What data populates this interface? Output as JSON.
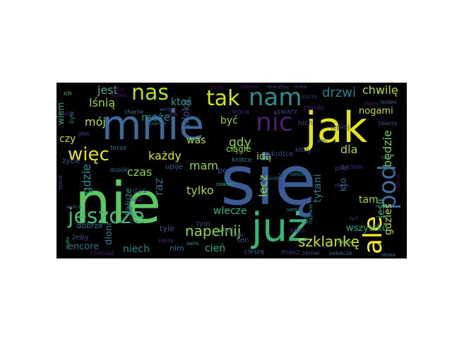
{
  "word_cloud": {
    "background": "#000000",
    "words": [
      {
        "text": "się",
        "color": "#3b5b94"
      },
      {
        "text": "nie",
        "color": "#5cc863"
      },
      {
        "text": "mnie",
        "color": "#3e6a9a"
      },
      {
        "text": "jak",
        "color": "#e2e418"
      },
      {
        "text": "już",
        "color": "#36b677"
      },
      {
        "text": "jeszcze",
        "color": "#46b97a"
      },
      {
        "text": "ale",
        "color": "#fde725"
      },
      {
        "text": "pod",
        "color": "#3f6c9d"
      },
      {
        "text": "tak",
        "color": "#d2e21b"
      },
      {
        "text": "nam",
        "color": "#2d8e8d"
      },
      {
        "text": "nas",
        "color": "#b5de2b"
      },
      {
        "text": "nic",
        "color": "#482172"
      },
      {
        "text": "więc",
        "color": "#e5e419"
      },
      {
        "text": "napełnij",
        "color": "#90d743"
      },
      {
        "text": "szklankę",
        "color": "#cee11d"
      },
      {
        "text": "jest",
        "color": "#4aa889"
      },
      {
        "text": "lśnią",
        "color": "#96d440"
      },
      {
        "text": "może",
        "color": "#24878e"
      },
      {
        "text": "ktoś",
        "color": "#2a9d8a"
      },
      {
        "text": "drzwi",
        "color": "#25828e"
      },
      {
        "text": "chwilę",
        "color": "#b3dd2c"
      },
      {
        "text": "będzie",
        "color": "#6ece58"
      },
      {
        "text": "mój",
        "color": "#bddf26"
      },
      {
        "text": "gdzie",
        "color": "#1f958b"
      },
      {
        "text": "każdy",
        "color": "#d8e219"
      },
      {
        "text": "mam",
        "color": "#90d743"
      },
      {
        "text": "gdy",
        "color": "#8bd646"
      },
      {
        "text": "być",
        "color": "#8ed645"
      },
      {
        "text": "dla",
        "color": "#9fda3a"
      },
      {
        "text": "czy",
        "color": "#bfdf25"
      },
      {
        "text": "wlokę",
        "color": "#3a548c"
      },
      {
        "text": "tylko",
        "color": "#a2da37"
      },
      {
        "text": "czas",
        "color": "#8bd646"
      },
      {
        "text": "raz",
        "color": "#2f6c8e"
      },
      {
        "text": "lecz",
        "color": "#93d741"
      },
      {
        "text": "idą",
        "color": "#8ed645"
      },
      {
        "text": "jeśli",
        "color": "#35b779"
      },
      {
        "text": "tam",
        "color": "#9fda3a"
      },
      {
        "text": "gdzieś",
        "color": "#bddf26"
      },
      {
        "text": "wlecze",
        "color": "#35b779"
      },
      {
        "text": "cień",
        "color": "#2db27d"
      },
      {
        "text": "niech",
        "color": "#238a8d"
      },
      {
        "text": "nogami",
        "color": "#c0df25"
      },
      {
        "text": "tytani",
        "color": "#26818e"
      },
      {
        "text": "dłoni",
        "color": "#2a788e"
      },
      {
        "text": "encore",
        "color": "#2c718e"
      },
      {
        "text": "wszystko",
        "color": "#25ab82"
      },
      {
        "text": "was",
        "color": "#b5de2b"
      },
      {
        "text": "ciągle",
        "color": "#90d743"
      },
      {
        "text": "krótce",
        "color": "#287c8e"
      },
      {
        "text": "nim",
        "color": "#2c728e"
      },
      {
        "text": "kałuże",
        "color": "#20928c"
      },
      {
        "text": "wiem",
        "color": "#2fb47c"
      },
      {
        "text": "dobrze",
        "color": "#31688e"
      },
      {
        "text": "cieszą",
        "color": "#365c8d"
      },
      {
        "text": "tyle",
        "color": "#3b528b"
      },
      {
        "text": "kto",
        "color": "#2e6f8e"
      },
      {
        "text": "tym",
        "color": "#3e4989"
      },
      {
        "text": "ten",
        "color": "#375a8c"
      },
      {
        "text": "boli",
        "color": "#2a778e"
      },
      {
        "text": "życie",
        "color": "#38588c"
      },
      {
        "text": "teraz",
        "color": "#2e6d8e"
      },
      {
        "text": "bez",
        "color": "#3c4f8a"
      },
      {
        "text": "żeby",
        "color": "#3d4d8a"
      },
      {
        "text": "chce",
        "color": "#2f6b8e"
      },
      {
        "text": "upije",
        "color": "#34618d"
      },
      {
        "text": "dziś",
        "color": "#453882"
      },
      {
        "text": "masz",
        "color": "#46337f"
      },
      {
        "text": "albo",
        "color": "#472c7a"
      },
      {
        "text": "lepiej",
        "color": "#414487"
      },
      {
        "text": "nich",
        "color": "#3f4788"
      },
      {
        "text": "swarz",
        "color": "#433e85"
      },
      {
        "text": "płacze",
        "color": "#48186a"
      },
      {
        "text": "pókí",
        "color": "#443983"
      },
      {
        "text": "który",
        "color": "#3c4f8a"
      },
      {
        "text": "cało",
        "color": "#3a548c"
      },
      {
        "text": "zórnie",
        "color": "#3b528b"
      },
      {
        "text": "wkrótce",
        "color": "#3e4989"
      },
      {
        "text": "moje",
        "color": "#414487"
      },
      {
        "text": "tekst",
        "color": "#453781"
      },
      {
        "text": "nad",
        "color": "#46337f"
      },
      {
        "text": "kiedy",
        "color": "#472d7b"
      },
      {
        "text": "leona",
        "color": "#482576"
      },
      {
        "text": "czemu",
        "color": "#481f70"
      },
      {
        "text": "brat",
        "color": "#46085c"
      },
      {
        "text": "sobą",
        "color": "#440154"
      },
      {
        "text": "mówią",
        "color": "#481467"
      },
      {
        "text": "świat",
        "color": "#450457"
      },
      {
        "text": "chociaż",
        "color": "#48186a"
      },
      {
        "text": "bądź",
        "color": "#481b6d"
      },
      {
        "text": "życiem",
        "color": "#472a7a"
      },
      {
        "text": "uszczy",
        "color": "#46327e"
      },
      {
        "text": "milka",
        "color": "#443a83"
      },
      {
        "text": "skaczesz",
        "color": "#3f4889"
      },
      {
        "text": "twarzy",
        "color": "#3a538b"
      },
      {
        "text": "ledwo",
        "color": "#355f8d"
      },
      {
        "text": "sobacze",
        "color": "#30698e"
      },
      {
        "text": "słowa",
        "color": "#2d718e"
      },
      {
        "text": "krótka",
        "color": "#29798e"
      },
      {
        "text": "napiwać",
        "color": "#26828e"
      },
      {
        "text": "niebie",
        "color": "#228b8d"
      },
      {
        "text": "świni",
        "color": "#1f948c"
      },
      {
        "text": "charlie",
        "color": "#2a788e"
      },
      {
        "text": "płuh",
        "color": "#414487"
      },
      {
        "text": "wciąż",
        "color": "#3b528b"
      },
      {
        "text": "dopóki",
        "color": "#2c728e"
      },
      {
        "text": "było",
        "color": "#21918c"
      },
      {
        "text": "mało",
        "color": "#28ae80"
      },
      {
        "text": "ich",
        "color": "#5ec962"
      },
      {
        "text": "głos",
        "color": "#3e4a89"
      },
      {
        "text": "pięknie",
        "color": "#345f8d"
      },
      {
        "text": "zyd",
        "color": "#472d7b"
      },
      {
        "text": "dobry",
        "color": "#482173"
      },
      {
        "text": "ostatni",
        "color": "#463480"
      },
      {
        "text": "został",
        "color": "#3f4788"
      },
      {
        "text": "wrócę",
        "color": "#355e8d"
      },
      {
        "text": "pięć",
        "color": "#2b758e"
      },
      {
        "text": "sam",
        "color": "#23888e"
      },
      {
        "text": "coś",
        "color": "#1fa187"
      },
      {
        "text": "zawsze",
        "color": "#27ad81"
      },
      {
        "text": "moim",
        "color": "#4ac16d"
      }
    ]
  }
}
